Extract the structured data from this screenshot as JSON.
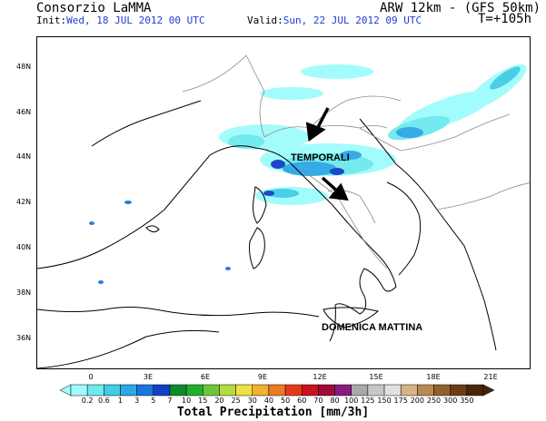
{
  "header": {
    "source": "Consorzio LaMMA",
    "model": "ARW 12km - (GFS 50km)",
    "init_label": "Init:",
    "init_value": "Wed, 18 JUL 2012 00 UTC",
    "valid_label": "Valid:",
    "valid_value": "Sun, 22 JUL 2012 09 UTC",
    "lead_time": "T=+105h"
  },
  "axes": {
    "lat_ticks": [
      "48N",
      "46N",
      "44N",
      "42N",
      "40N",
      "38N",
      "36N"
    ],
    "lon_ticks": [
      "0",
      "3E",
      "6E",
      "9E",
      "12E",
      "15E",
      "18E",
      "21E"
    ]
  },
  "annotations": {
    "storms": "TEMPORALI",
    "period": "DOMENICA MATTINA"
  },
  "colorbar": {
    "title": "Total Precipitation [mm/3h]",
    "labels": [
      "0.2",
      "0.6",
      "1",
      "3",
      "5",
      "7",
      "10",
      "15",
      "20",
      "25",
      "30",
      "40",
      "50",
      "60",
      "70",
      "80",
      "100",
      "125",
      "150",
      "175",
      "200",
      "250",
      "300",
      "350"
    ],
    "colors": [
      "#9ffcfc",
      "#6ee9ee",
      "#41cce6",
      "#2ba6e6",
      "#1876e0",
      "#1040c8",
      "#0f8a2e",
      "#20b030",
      "#6cc83a",
      "#b4dc3c",
      "#f0e040",
      "#f0b030",
      "#ee7a22",
      "#e43a1c",
      "#c8141e",
      "#a00a3a",
      "#8a1a7e",
      "#a8a8a8",
      "#c8c8c8",
      "#e0e0e0",
      "#d6b486",
      "#b88a50",
      "#94602c",
      "#6e3c14",
      "#4a2408"
    ]
  }
}
